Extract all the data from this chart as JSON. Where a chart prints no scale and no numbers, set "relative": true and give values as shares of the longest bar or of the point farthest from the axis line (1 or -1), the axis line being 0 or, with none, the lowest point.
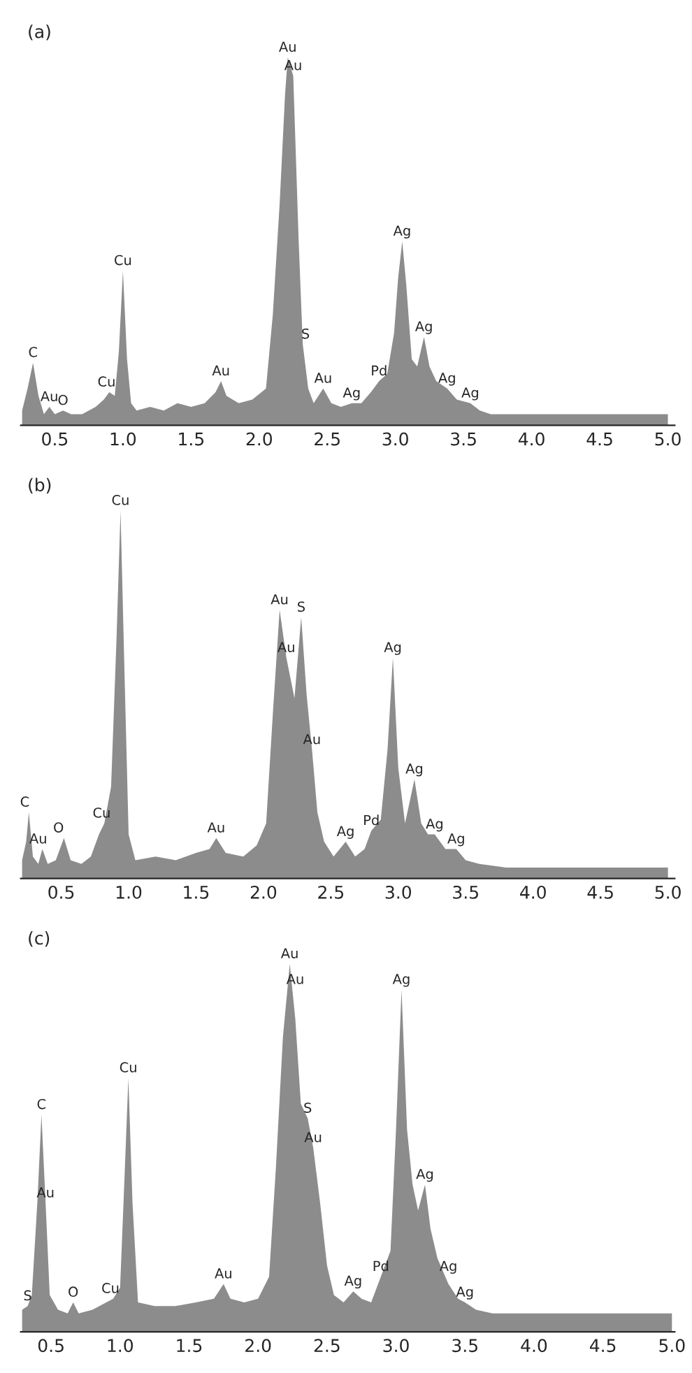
{
  "chart_data": [
    {
      "type": "area",
      "title": "(a)",
      "relative": true,
      "tick_labels": "x",
      "grid": false,
      "xlim": [
        0.25,
        5.05
      ],
      "xticks": [
        {
          "value": 0.5,
          "label": "0.5"
        },
        {
          "value": 1,
          "label": "1.0"
        },
        {
          "value": 1.5,
          "label": "1.5"
        },
        {
          "value": 2,
          "label": "2.0"
        },
        {
          "value": 2.5,
          "label": "2.5"
        },
        {
          "value": 3,
          "label": "3.0"
        },
        {
          "value": 3.5,
          "label": "3.5"
        },
        {
          "value": 4,
          "label": "4.0"
        },
        {
          "value": 4.5,
          "label": "4.5"
        },
        {
          "value": 5,
          "label": "5.0"
        }
      ],
      "series": [
        {
          "color": "#8c8c8c",
          "x": [
            0.26,
            0.3,
            0.34,
            0.38,
            0.42,
            0.46,
            0.5,
            0.56,
            0.62,
            0.7,
            0.8,
            0.86,
            0.9,
            0.94,
            0.97,
            1.0,
            1.03,
            1.06,
            1.1,
            1.2,
            1.3,
            1.4,
            1.5,
            1.6,
            1.68,
            1.72,
            1.76,
            1.85,
            1.95,
            2.05,
            2.1,
            2.15,
            2.19,
            2.21,
            2.25,
            2.29,
            2.32,
            2.36,
            2.4,
            2.47,
            2.53,
            2.6,
            2.68,
            2.75,
            2.82,
            2.88,
            2.94,
            2.99,
            3.02,
            3.05,
            3.08,
            3.12,
            3.16,
            3.21,
            3.25,
            3.3,
            3.38,
            3.45,
            3.55,
            3.62,
            3.7,
            3.8,
            4.0,
            4.2,
            4.4,
            4.6,
            4.8,
            5.0
          ],
          "values": [
            0.04,
            0.1,
            0.17,
            0.08,
            0.03,
            0.05,
            0.03,
            0.04,
            0.03,
            0.03,
            0.05,
            0.07,
            0.09,
            0.08,
            0.2,
            0.42,
            0.18,
            0.06,
            0.04,
            0.05,
            0.04,
            0.06,
            0.05,
            0.06,
            0.09,
            0.12,
            0.08,
            0.06,
            0.07,
            0.1,
            0.3,
            0.6,
            0.9,
            1.0,
            0.95,
            0.5,
            0.22,
            0.1,
            0.06,
            0.1,
            0.06,
            0.05,
            0.06,
            0.06,
            0.09,
            0.12,
            0.14,
            0.25,
            0.4,
            0.5,
            0.38,
            0.18,
            0.16,
            0.24,
            0.16,
            0.12,
            0.1,
            0.07,
            0.06,
            0.04,
            0.03,
            0.03,
            0.03,
            0.03,
            0.03,
            0.03,
            0.03,
            0.03
          ]
        }
      ],
      "annotations": [
        {
          "text": "C",
          "x": 0.34,
          "y": 0.17
        },
        {
          "text": "Au",
          "x": 0.46,
          "y": 0.05
        },
        {
          "text": "O",
          "x": 0.56,
          "y": 0.04
        },
        {
          "text": "Cu",
          "x": 0.88,
          "y": 0.09
        },
        {
          "text": "Cu",
          "x": 1.0,
          "y": 0.42
        },
        {
          "text": "Au",
          "x": 1.72,
          "y": 0.12
        },
        {
          "text": "Au",
          "x": 2.21,
          "y": 1.0
        },
        {
          "text": "Au",
          "x": 2.25,
          "y": 0.95
        },
        {
          "text": "S",
          "x": 2.34,
          "y": 0.22
        },
        {
          "text": "Au",
          "x": 2.47,
          "y": 0.1
        },
        {
          "text": "Ag",
          "x": 2.68,
          "y": 0.06
        },
        {
          "text": "Pd",
          "x": 2.88,
          "y": 0.12
        },
        {
          "text": "Ag",
          "x": 3.05,
          "y": 0.5
        },
        {
          "text": "Ag",
          "x": 3.21,
          "y": 0.24
        },
        {
          "text": "Ag",
          "x": 3.38,
          "y": 0.1
        },
        {
          "text": "Ag",
          "x": 3.55,
          "y": 0.06
        }
      ]
    },
    {
      "type": "area",
      "title": "(b)",
      "relative": true,
      "tick_labels": "x",
      "grid": false,
      "xlim": [
        0.2,
        5.05
      ],
      "xticks": [
        {
          "value": 0.5,
          "label": "0.5"
        },
        {
          "value": 1,
          "label": "1.0"
        },
        {
          "value": 1.5,
          "label": "1.5"
        },
        {
          "value": 2,
          "label": "2.0"
        },
        {
          "value": 2.5,
          "label": "2.5"
        },
        {
          "value": 3,
          "label": "3.0"
        },
        {
          "value": 3.5,
          "label": "3.5"
        },
        {
          "value": 4,
          "label": "4.0"
        },
        {
          "value": 4.5,
          "label": "4.5"
        },
        {
          "value": 5,
          "label": "5.0"
        }
      ],
      "series": [
        {
          "color": "#8c8c8c",
          "x": [
            0.21,
            0.24,
            0.26,
            0.29,
            0.33,
            0.36,
            0.4,
            0.46,
            0.52,
            0.57,
            0.65,
            0.72,
            0.78,
            0.82,
            0.87,
            0.91,
            0.94,
            0.97,
            1.0,
            1.05,
            1.2,
            1.35,
            1.5,
            1.6,
            1.65,
            1.72,
            1.85,
            1.95,
            2.02,
            2.07,
            2.12,
            2.17,
            2.23,
            2.28,
            2.32,
            2.36,
            2.4,
            2.45,
            2.52,
            2.61,
            2.68,
            2.75,
            2.8,
            2.87,
            2.92,
            2.96,
            3.0,
            3.05,
            3.12,
            3.17,
            3.22,
            3.27,
            3.35,
            3.43,
            3.5,
            3.6,
            3.8,
            4.0,
            4.2,
            4.4,
            4.6,
            4.8,
            5.0
          ],
          "values": [
            0.05,
            0.1,
            0.18,
            0.06,
            0.04,
            0.08,
            0.04,
            0.05,
            0.11,
            0.05,
            0.04,
            0.06,
            0.12,
            0.15,
            0.25,
            0.65,
            1.0,
            0.55,
            0.12,
            0.05,
            0.06,
            0.05,
            0.07,
            0.08,
            0.11,
            0.07,
            0.06,
            0.09,
            0.15,
            0.45,
            0.73,
            0.6,
            0.49,
            0.71,
            0.5,
            0.35,
            0.18,
            0.1,
            0.06,
            0.1,
            0.06,
            0.08,
            0.13,
            0.16,
            0.35,
            0.6,
            0.3,
            0.15,
            0.27,
            0.15,
            0.12,
            0.12,
            0.08,
            0.08,
            0.05,
            0.04,
            0.03,
            0.03,
            0.03,
            0.03,
            0.03,
            0.03,
            0.03
          ]
        }
      ],
      "annotations": [
        {
          "text": "C",
          "x": 0.23,
          "y": 0.18
        },
        {
          "text": "Au",
          "x": 0.33,
          "y": 0.08
        },
        {
          "text": "O",
          "x": 0.48,
          "y": 0.11
        },
        {
          "text": "Cu",
          "x": 0.8,
          "y": 0.15
        },
        {
          "text": "Cu",
          "x": 0.94,
          "y": 1.0
        },
        {
          "text": "Au",
          "x": 1.65,
          "y": 0.11
        },
        {
          "text": "Au",
          "x": 2.17,
          "y": 0.6
        },
        {
          "text": "Au",
          "x": 2.12,
          "y": 0.73
        },
        {
          "text": "S",
          "x": 2.28,
          "y": 0.71
        },
        {
          "text": "Au",
          "x": 2.36,
          "y": 0.35
        },
        {
          "text": "Ag",
          "x": 2.61,
          "y": 0.1
        },
        {
          "text": "Pd",
          "x": 2.8,
          "y": 0.13
        },
        {
          "text": "Ag",
          "x": 2.96,
          "y": 0.6
        },
        {
          "text": "Ag",
          "x": 3.12,
          "y": 0.27
        },
        {
          "text": "Ag",
          "x": 3.27,
          "y": 0.12
        },
        {
          "text": "Ag",
          "x": 3.43,
          "y": 0.08
        }
      ]
    },
    {
      "type": "area",
      "title": "(c)",
      "relative": true,
      "tick_labels": "x",
      "grid": false,
      "xlim": [
        0.28,
        5.02
      ],
      "xticks": [
        {
          "value": 0.5,
          "label": "0.5"
        },
        {
          "value": 1,
          "label": "1.0"
        },
        {
          "value": 1.5,
          "label": "1.5"
        },
        {
          "value": 2,
          "label": "2.0"
        },
        {
          "value": 2.5,
          "label": "2.5"
        },
        {
          "value": 3,
          "label": "3.0"
        },
        {
          "value": 3.5,
          "label": "3.5"
        },
        {
          "value": 4,
          "label": "4.0"
        },
        {
          "value": 4.5,
          "label": "4.5"
        },
        {
          "value": 5,
          "label": "5.0"
        }
      ],
      "series": [
        {
          "color": "#8c8c8c",
          "x": [
            0.29,
            0.33,
            0.36,
            0.4,
            0.43,
            0.46,
            0.49,
            0.55,
            0.62,
            0.66,
            0.7,
            0.8,
            0.9,
            0.95,
            1.0,
            1.03,
            1.06,
            1.09,
            1.13,
            1.25,
            1.4,
            1.55,
            1.68,
            1.75,
            1.8,
            1.9,
            2.0,
            2.08,
            2.13,
            2.18,
            2.23,
            2.27,
            2.31,
            2.36,
            2.4,
            2.45,
            2.5,
            2.55,
            2.62,
            2.69,
            2.75,
            2.82,
            2.89,
            2.96,
            3.0,
            3.04,
            3.08,
            3.12,
            3.16,
            3.21,
            3.25,
            3.3,
            3.38,
            3.45,
            3.5,
            3.58,
            3.7,
            3.9,
            4.1,
            4.3,
            4.5,
            4.7,
            4.9,
            5.0
          ],
          "values": [
            0.06,
            0.07,
            0.1,
            0.35,
            0.59,
            0.35,
            0.1,
            0.06,
            0.05,
            0.08,
            0.05,
            0.06,
            0.08,
            0.09,
            0.12,
            0.4,
            0.69,
            0.35,
            0.08,
            0.07,
            0.07,
            0.08,
            0.09,
            0.13,
            0.09,
            0.08,
            0.09,
            0.15,
            0.45,
            0.8,
            1.0,
            0.85,
            0.62,
            0.58,
            0.5,
            0.35,
            0.18,
            0.1,
            0.08,
            0.11,
            0.09,
            0.08,
            0.15,
            0.22,
            0.55,
            0.93,
            0.55,
            0.4,
            0.33,
            0.4,
            0.28,
            0.2,
            0.13,
            0.09,
            0.08,
            0.06,
            0.05,
            0.05,
            0.05,
            0.05,
            0.05,
            0.05,
            0.05,
            0.05
          ]
        }
      ],
      "annotations": [
        {
          "text": "S",
          "x": 0.33,
          "y": 0.07
        },
        {
          "text": "C",
          "x": 0.43,
          "y": 0.59
        },
        {
          "text": "Au",
          "x": 0.46,
          "y": 0.35
        },
        {
          "text": "O",
          "x": 0.66,
          "y": 0.08
        },
        {
          "text": "Cu",
          "x": 0.93,
          "y": 0.09
        },
        {
          "text": "Cu",
          "x": 1.06,
          "y": 0.69
        },
        {
          "text": "Au",
          "x": 1.75,
          "y": 0.13
        },
        {
          "text": "Au",
          "x": 2.23,
          "y": 1.0
        },
        {
          "text": "Au",
          "x": 2.27,
          "y": 0.93
        },
        {
          "text": "S",
          "x": 2.36,
          "y": 0.58
        },
        {
          "text": "Au",
          "x": 2.4,
          "y": 0.5
        },
        {
          "text": "Ag",
          "x": 2.69,
          "y": 0.11
        },
        {
          "text": "Pd",
          "x": 2.89,
          "y": 0.15
        },
        {
          "text": "Ag",
          "x": 3.04,
          "y": 0.93
        },
        {
          "text": "Ag",
          "x": 3.21,
          "y": 0.4
        },
        {
          "text": "Ag",
          "x": 3.38,
          "y": 0.15
        },
        {
          "text": "Ag",
          "x": 3.5,
          "y": 0.08
        }
      ]
    }
  ]
}
